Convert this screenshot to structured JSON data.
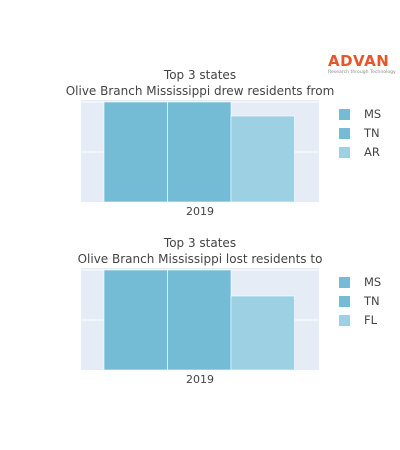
{
  "brand": {
    "name": "ADVAN",
    "tagline": "Research through Technology",
    "color": "#e8552b"
  },
  "chart_data": [
    {
      "type": "bar",
      "title_line1": "Top 3 states",
      "title_line2": "Olive Branch Mississippi drew residents from",
      "categories": [
        "2019"
      ],
      "series": [
        {
          "name": "MS",
          "values": [
            100
          ],
          "color": "#74bcd6"
        },
        {
          "name": "TN",
          "values": [
            100
          ],
          "color": "#74bcd6"
        },
        {
          "name": "AR",
          "values": [
            86
          ],
          "color": "#9dd0e3"
        }
      ],
      "ylim": [
        0,
        100
      ],
      "grid": true,
      "legend": "right"
    },
    {
      "type": "bar",
      "title_line1": "Top 3 states",
      "title_line2": "Olive Branch Mississippi lost residents to",
      "categories": [
        "2019"
      ],
      "series": [
        {
          "name": "MS",
          "values": [
            100
          ],
          "color": "#74bcd6"
        },
        {
          "name": "TN",
          "values": [
            100
          ],
          "color": "#74bcd6"
        },
        {
          "name": "FL",
          "values": [
            74
          ],
          "color": "#9dd0e3"
        }
      ],
      "ylim": [
        0,
        100
      ],
      "grid": true,
      "legend": "right"
    }
  ],
  "colors": {
    "plot_background": "#e5ecf6",
    "text": "#444444"
  }
}
